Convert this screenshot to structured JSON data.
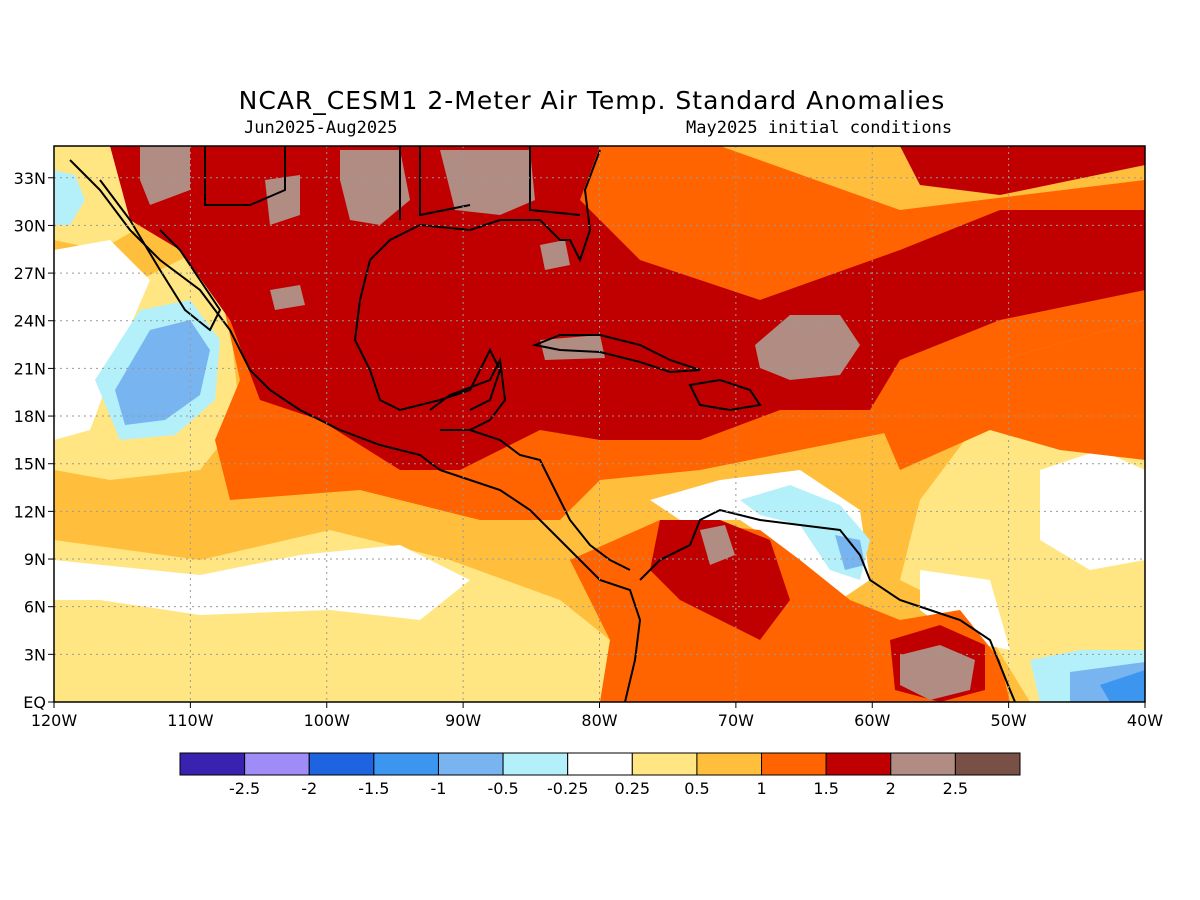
{
  "title": "NCAR_CESM1 2-Meter Air Temp. Standard Anomalies",
  "subtitle_left": "Jun2025-Aug2025",
  "subtitle_right": "May2025 initial conditions",
  "map": {
    "lat_ticks": [
      "33N",
      "30N",
      "27N",
      "24N",
      "21N",
      "18N",
      "15N",
      "12N",
      "9N",
      "6N",
      "3N",
      "EQ"
    ],
    "lat_values": [
      33,
      30,
      27,
      24,
      21,
      18,
      15,
      12,
      9,
      6,
      3,
      0
    ],
    "lon_ticks": [
      "120W",
      "110W",
      "100W",
      "90W",
      "80W",
      "70W",
      "60W",
      "50W",
      "40W"
    ],
    "lon_values": [
      -120,
      -110,
      -100,
      -90,
      -80,
      -70,
      -60,
      -50,
      -40
    ],
    "lat_range": [
      0,
      35
    ],
    "lon_range": [
      -120,
      -40
    ],
    "grid": "dotted"
  },
  "colorbar": {
    "colors": [
      "#3a22b0",
      "#a08cf6",
      "#1e64e0",
      "#3c96f0",
      "#78b4f0",
      "#b4f0fa",
      "#ffffff",
      "#ffe682",
      "#ffbe3c",
      "#ff6400",
      "#c00000",
      "#b08c82",
      "#785046"
    ],
    "labels": [
      "-2.5",
      "-2",
      "-1.5",
      "-1",
      "-0.5",
      "-0.25",
      "0.25",
      "0.5",
      "1",
      "1.5",
      "2",
      "2.5"
    ]
  },
  "colors": {
    "ocean_base": "#ffbe3c",
    "strong_warm": "#c00000",
    "warm": "#ff6400",
    "extreme": "#b08c82",
    "cool": "#78b4f0",
    "light_cool": "#b4f0fa",
    "neutral": "#ffffff",
    "mild": "#ffe682"
  }
}
